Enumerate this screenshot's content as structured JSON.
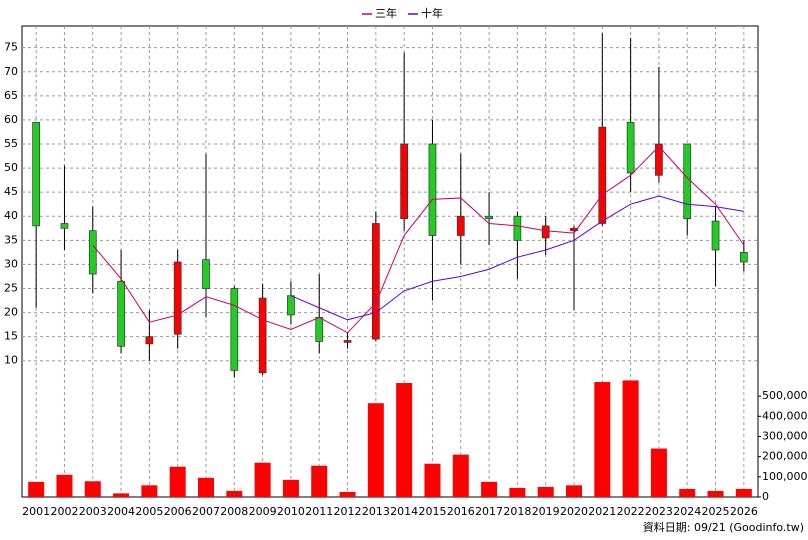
{
  "chart_data": {
    "type": "candlestick",
    "categories": [
      "2001",
      "2002",
      "2003",
      "2004",
      "2005",
      "2006",
      "2007",
      "2008",
      "2009",
      "2010",
      "2011",
      "2012",
      "2013",
      "2014",
      "2015",
      "2016",
      "2017",
      "2018",
      "2019",
      "2020",
      "2021",
      "2022",
      "2023",
      "2024",
      "2025",
      "2026"
    ],
    "open": [
      59.5,
      38.5,
      37,
      26.5,
      13.5,
      15.5,
      31,
      25,
      7.5,
      23.5,
      19,
      13.8,
      14.5,
      39.5,
      55,
      36,
      40,
      40,
      35.5,
      37,
      38.5,
      59.5,
      48.5,
      55,
      39,
      32.5
    ],
    "high": [
      59.5,
      50.5,
      42,
      33,
      20.5,
      33,
      53,
      25.5,
      26,
      26.5,
      28,
      16,
      41,
      74,
      60,
      53,
      45,
      41,
      40,
      38,
      78,
      77,
      71,
      55,
      42,
      35
    ],
    "low": [
      21,
      33,
      24,
      11.5,
      10,
      12.5,
      19,
      6.5,
      7,
      17.5,
      11.5,
      12.5,
      14,
      37,
      22.5,
      30,
      34,
      27,
      32,
      20.5,
      38,
      45,
      47,
      36,
      25.5,
      28.5
    ],
    "close": [
      38,
      37.5,
      28,
      13,
      15,
      30.5,
      25,
      8,
      23,
      19.5,
      14,
      14.2,
      38.5,
      55,
      36,
      40,
      39.5,
      35,
      38,
      37.5,
      58.5,
      49,
      55,
      39.5,
      33,
      30.5
    ],
    "up_color": "#ff0000",
    "down_color": "#22cc22",
    "series": [
      {
        "name": "三年",
        "color": "#cc0066",
        "values": [
          null,
          null,
          34,
          27,
          18,
          19.5,
          23.3,
          21.5,
          18.5,
          16.5,
          19,
          15.8,
          22,
          36,
          43.5,
          43.8,
          38.5,
          38,
          37,
          36.5,
          44.5,
          48.5,
          54.5,
          48,
          42.5,
          34
        ]
      },
      {
        "name": "十年",
        "color": "#6600cc",
        "values": [
          null,
          null,
          null,
          null,
          null,
          null,
          null,
          null,
          null,
          23.5,
          21,
          18.5,
          20,
          24.5,
          26.5,
          27.5,
          29,
          31.5,
          33,
          35,
          39,
          42.5,
          44.2,
          42.5,
          42,
          41
        ]
      }
    ],
    "ylim": [
      6,
      79.5
    ],
    "yticks": [
      10,
      15,
      20,
      25,
      30,
      35,
      40,
      45,
      50,
      55,
      60,
      65,
      70,
      75
    ],
    "grid": true,
    "legend": "top",
    "volume": {
      "color": "#ff0000",
      "values": [
        75000,
        110000,
        78000,
        18000,
        58000,
        150000,
        95000,
        30000,
        170000,
        85000,
        155000,
        25000,
        465000,
        565000,
        165000,
        210000,
        75000,
        45000,
        50000,
        58000,
        570000,
        578000,
        240000,
        40000,
        30000,
        40000
      ],
      "ylim": [
        0,
        580000
      ],
      "yticks": [
        0,
        {
          "value": 100000,
          "label": "100,000"
        },
        {
          "value": 200000,
          "label": "200,000"
        },
        {
          "value": 300000,
          "label": "300,000"
        },
        {
          "value": 400000,
          "label": "400,000"
        },
        {
          "value": 500000,
          "label": "500,000"
        }
      ]
    },
    "footnote": "資料日期: 09/21 (Goodinfo.tw)"
  }
}
